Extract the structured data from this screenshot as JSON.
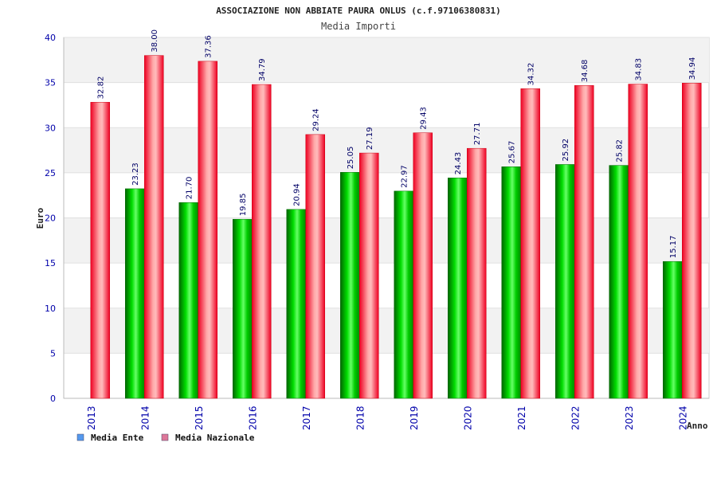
{
  "chart_data": {
    "type": "bar",
    "title": "ASSOCIAZIONE NON ABBIATE PAURA ONLUS (c.f.97106380831)",
    "subtitle": "Media Importi",
    "xlabel": "Anno",
    "ylabel": "Euro",
    "ylim": [
      0,
      40
    ],
    "yticks": [
      0,
      5,
      10,
      15,
      20,
      25,
      30,
      35,
      40
    ],
    "grid": true,
    "legend_position": "bottom-left",
    "categories": [
      "2013",
      "2014",
      "2015",
      "2016",
      "2017",
      "2018",
      "2019",
      "2020",
      "2021",
      "2022",
      "2023",
      "2024"
    ],
    "series": [
      {
        "name": "Media Ente",
        "color": "#00aa00",
        "legend_color": "#5599ee",
        "values": [
          null,
          23.23,
          21.7,
          19.85,
          20.94,
          25.05,
          22.97,
          24.43,
          25.67,
          25.92,
          25.82,
          15.17
        ],
        "labels": [
          "",
          "23.23",
          "21.70",
          "19.85",
          "20.94",
          "25.05",
          "22.97",
          "24.43",
          "25.67",
          "25.92",
          "25.82",
          "15.17"
        ]
      },
      {
        "name": "Media Nazionale",
        "color": "#ee0022",
        "legend_color": "#dd7799",
        "values": [
          32.82,
          38.0,
          37.36,
          34.79,
          29.24,
          27.19,
          29.43,
          27.71,
          34.32,
          34.68,
          34.83,
          34.94
        ],
        "labels": [
          "32.82",
          "38.00",
          "37.36",
          "34.79",
          "29.24",
          "27.19",
          "29.43",
          "27.71",
          "34.32",
          "34.68",
          "34.83",
          "34.94"
        ]
      }
    ]
  }
}
